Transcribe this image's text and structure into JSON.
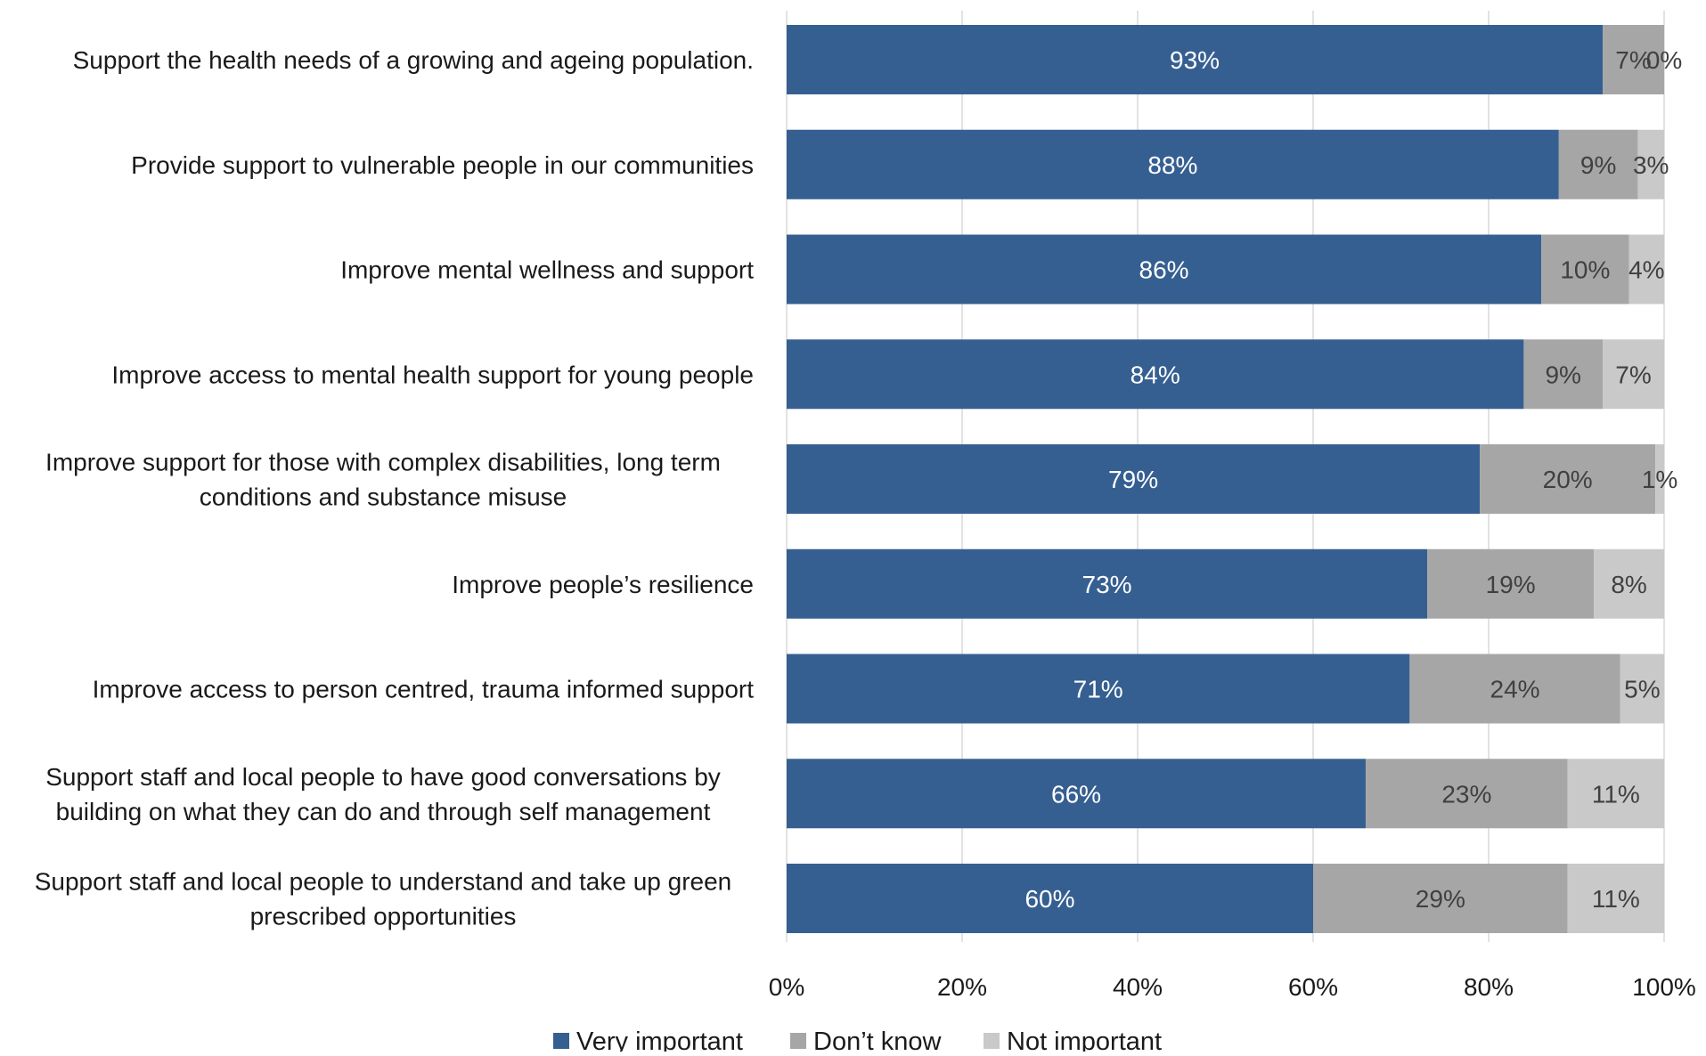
{
  "colors": {
    "very_important": "#365F91",
    "dont_know": "#A6A6A6",
    "not_important": "#C9C9C9",
    "grid": "#D9D9D9",
    "label_on_dark": "#ffffff",
    "label_on_light": "#404040"
  },
  "chart_data": {
    "type": "bar",
    "orientation": "horizontal",
    "stacked": true,
    "percent": true,
    "categories": [
      [
        "Support the health needs of a growing and ageing population."
      ],
      [
        "Provide support to vulnerable people in our communities"
      ],
      [
        "Improve mental wellness and support"
      ],
      [
        "Improve access to mental health support for young people"
      ],
      [
        "Improve support for those with complex disabilities, long term",
        "conditions and substance misuse"
      ],
      [
        "Improve people’s resilience"
      ],
      [
        "Improve access to person centred, trauma informed support"
      ],
      [
        "Support staff and local people to have good conversations by",
        "building on what they can do and through self management"
      ],
      [
        "Support staff and local people to understand and take up green",
        "prescribed opportunities"
      ]
    ],
    "series": [
      {
        "name": "Very important",
        "color_key": "very_important",
        "values": [
          93,
          88,
          86,
          84,
          79,
          73,
          71,
          66,
          60
        ]
      },
      {
        "name": "Don’t know",
        "color_key": "dont_know",
        "values": [
          7,
          9,
          10,
          9,
          20,
          19,
          24,
          23,
          29
        ]
      },
      {
        "name": "Not important",
        "color_key": "not_important",
        "values": [
          0,
          3,
          4,
          7,
          1,
          8,
          5,
          11,
          11
        ]
      }
    ],
    "xlim": [
      0,
      100
    ],
    "xticks": [
      0,
      20,
      40,
      60,
      80,
      100
    ],
    "xtick_labels": [
      "0%",
      "20%",
      "40%",
      "60%",
      "80%",
      "100%"
    ],
    "value_suffix": "%",
    "grid": true,
    "legend_position": "bottom"
  }
}
